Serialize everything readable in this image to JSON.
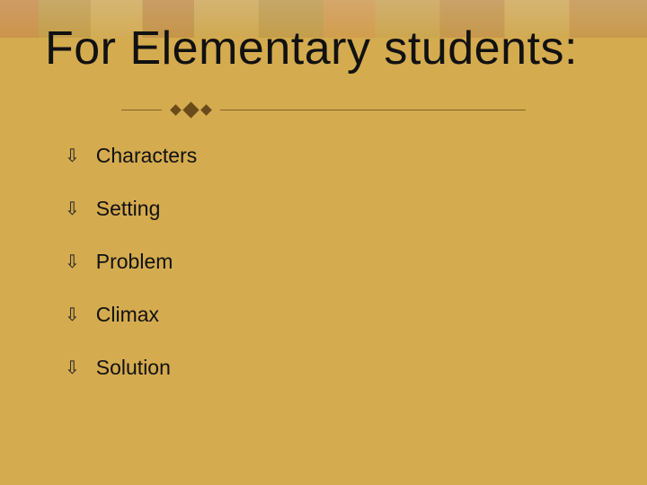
{
  "title": "For Elementary students:",
  "bullet_glyph": "⇩",
  "items": [
    {
      "label": "Characters"
    },
    {
      "label": "Setting"
    },
    {
      "label": "Problem"
    },
    {
      "label": "Climax"
    },
    {
      "label": "Solution"
    }
  ],
  "colors": {
    "background": "#d4ab4f",
    "text": "#111111",
    "divider": "#6b4a1a"
  },
  "typography": {
    "title_fontsize": 52,
    "item_fontsize": 23,
    "title_weight": 400
  }
}
